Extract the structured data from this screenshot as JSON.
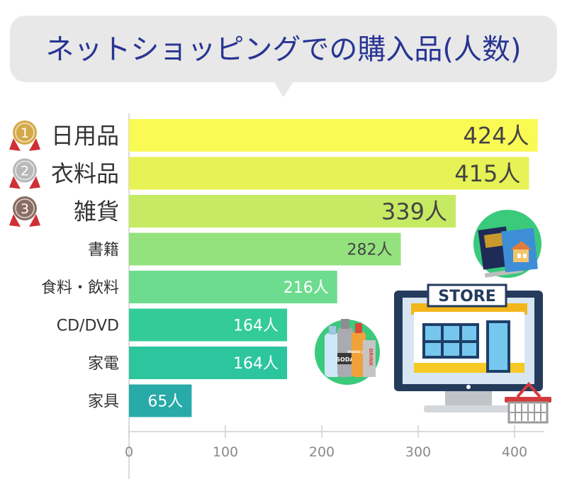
{
  "title": "ネットショッピングでの購入品(人数)",
  "colors": {
    "bubble": "#e8e8e8",
    "title": "#283593",
    "bars": [
      "#fafa55",
      "#e6f255",
      "#c6ea63",
      "#93e27d",
      "#6edc8f",
      "#33cc98",
      "#2cc59e",
      "#27aaa8"
    ],
    "medals": [
      "#d5a94a",
      "#b9b9b9",
      "#8a6e63"
    ],
    "ribbon": "#cf3035",
    "axis": "#cfcfcf",
    "labels": "#333333"
  },
  "chart_data": {
    "type": "bar",
    "orientation": "horizontal",
    "title": "ネットショッピングでの購入品(人数)",
    "categories": [
      "日用品",
      "衣料品",
      "雑貨",
      "書籍",
      "食料・飲料",
      "CD/DVD",
      "家電",
      "家具"
    ],
    "values": [
      424,
      415,
      339,
      282,
      216,
      164,
      164,
      65
    ],
    "value_labels": [
      "424人",
      "415人",
      "339人",
      "282人",
      "216人",
      "164人",
      "164人",
      "65人"
    ],
    "xlim": [
      0,
      430
    ],
    "xticks": [
      0,
      100,
      200,
      300,
      400
    ],
    "medals": [
      "1",
      "2",
      "3"
    ],
    "grid": false
  },
  "store_sign": "STORE",
  "icons": {
    "books": "books-icon",
    "drinks": "drinks-icon",
    "store": "online-store-icon",
    "basket": "shopping-basket-icon"
  },
  "drink_labels": {
    "soda": "SODA",
    "juice": "ORANGE JUICE",
    "drink": "DRINK"
  }
}
